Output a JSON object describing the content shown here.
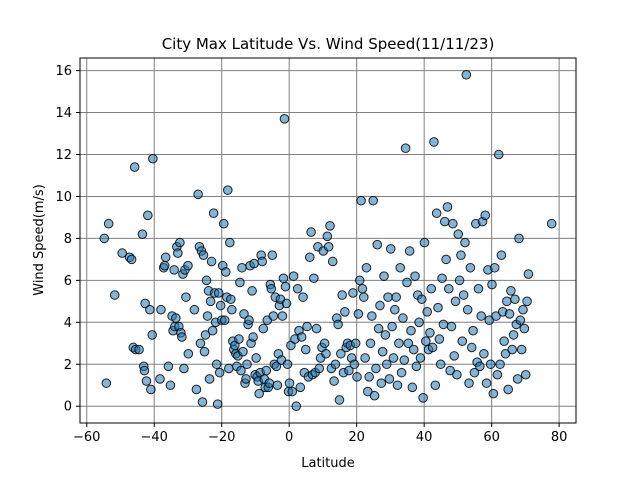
{
  "chart_data": {
    "type": "scatter",
    "title": "City Max Latitude Vs. Wind Speed(11/11/23)",
    "xlabel": "Latitude",
    "ylabel": "Wind Speed(m/s)",
    "xlim": [
      -62,
      85
    ],
    "ylim": [
      -0.8,
      16.6
    ],
    "xticks": [
      -60,
      -40,
      -20,
      0,
      20,
      40,
      60,
      80
    ],
    "yticks": [
      0,
      2,
      4,
      6,
      8,
      10,
      12,
      14,
      16
    ],
    "grid": true,
    "marker_color": "#1f77b4",
    "marker_edge_color": "#000000",
    "marker_alpha": 0.55,
    "points": [
      [
        -54.8,
        8.0
      ],
      [
        -54.2,
        1.1
      ],
      [
        -53.5,
        8.7
      ],
      [
        -51.7,
        5.3
      ],
      [
        -49.5,
        7.3
      ],
      [
        -47.3,
        7.1
      ],
      [
        -46.7,
        7.0
      ],
      [
        -46.2,
        2.8
      ],
      [
        -45.8,
        11.4
      ],
      [
        -45.5,
        2.7
      ],
      [
        -44.5,
        2.7
      ],
      [
        -43.5,
        8.2
      ],
      [
        -43.1,
        1.9
      ],
      [
        -42.9,
        1.7
      ],
      [
        -42.7,
        4.9
      ],
      [
        -42.3,
        1.2
      ],
      [
        -41.9,
        9.1
      ],
      [
        -41.3,
        4.6
      ],
      [
        -41.0,
        0.8
      ],
      [
        -40.6,
        3.4
      ],
      [
        -40.4,
        11.8
      ],
      [
        -38.3,
        1.3
      ],
      [
        -38.0,
        4.6
      ],
      [
        -37.2,
        6.6
      ],
      [
        -36.9,
        6.7
      ],
      [
        -36.6,
        7.1
      ],
      [
        -35.8,
        1.9
      ],
      [
        -35.2,
        1.0
      ],
      [
        -34.7,
        4.3
      ],
      [
        -34.4,
        3.6
      ],
      [
        -34.1,
        6.5
      ],
      [
        -33.9,
        3.8
      ],
      [
        -33.6,
        4.2
      ],
      [
        -33.3,
        7.6
      ],
      [
        -33.0,
        7.3
      ],
      [
        -32.7,
        3.8
      ],
      [
        -32.4,
        7.8
      ],
      [
        -32.1,
        3.5
      ],
      [
        -31.8,
        3.3
      ],
      [
        -31.5,
        6.3
      ],
      [
        -31.2,
        1.8
      ],
      [
        -30.9,
        6.5
      ],
      [
        -30.6,
        5.2
      ],
      [
        -30.0,
        6.7
      ],
      [
        -29.9,
        2.5
      ],
      [
        -28.1,
        4.6
      ],
      [
        -27.5,
        0.8
      ],
      [
        -27.0,
        10.1
      ],
      [
        -26.6,
        7.6
      ],
      [
        -26.3,
        3.0
      ],
      [
        -26.0,
        7.4
      ],
      [
        -25.7,
        0.2
      ],
      [
        -25.4,
        7.2
      ],
      [
        -25.1,
        2.6
      ],
      [
        -24.8,
        3.4
      ],
      [
        -24.5,
        6.0
      ],
      [
        -24.2,
        4.3
      ],
      [
        -23.9,
        5.5
      ],
      [
        -23.6,
        1.3
      ],
      [
        -23.3,
        5.0
      ],
      [
        -23.0,
        6.9
      ],
      [
        -22.7,
        3.6
      ],
      [
        -22.4,
        9.2
      ],
      [
        -22.1,
        5.4
      ],
      [
        -21.8,
        4.0
      ],
      [
        -21.5,
        2.0
      ],
      [
        -21.2,
        0.1
      ],
      [
        -20.9,
        5.4
      ],
      [
        -20.6,
        1.6
      ],
      [
        -20.3,
        4.8
      ],
      [
        -20.0,
        4.1
      ],
      [
        -19.7,
        6.7
      ],
      [
        -19.4,
        8.7
      ],
      [
        -19.1,
        4.1
      ],
      [
        -18.8,
        6.4
      ],
      [
        -18.5,
        5.2
      ],
      [
        -18.2,
        10.3
      ],
      [
        -17.9,
        1.8
      ],
      [
        -17.6,
        7.8
      ],
      [
        -17.3,
        5.1
      ],
      [
        -17.0,
        4.6
      ],
      [
        -16.7,
        3.1
      ],
      [
        -16.4,
        2.7
      ],
      [
        -16.1,
        2.9
      ],
      [
        -15.8,
        2.5
      ],
      [
        -15.5,
        1.9
      ],
      [
        -15.2,
        2.4
      ],
      [
        -14.9,
        3.2
      ],
      [
        -14.6,
        5.9
      ],
      [
        -14.3,
        1.7
      ],
      [
        -14.0,
        6.6
      ],
      [
        -13.7,
        2.6
      ],
      [
        -13.4,
        4.4
      ],
      [
        -13.1,
        1.1
      ],
      [
        -12.8,
        1.3
      ],
      [
        -12.5,
        2.0
      ],
      [
        -12.2,
        3.9
      ],
      [
        -11.9,
        4.1
      ],
      [
        -11.6,
        6.7
      ],
      [
        -11.3,
        3.0
      ],
      [
        -11.0,
        5.5
      ],
      [
        -10.7,
        3.3
      ],
      [
        -10.4,
        6.8
      ],
      [
        -10.1,
        1.5
      ],
      [
        -9.8,
        2.3
      ],
      [
        -9.5,
        1.4
      ],
      [
        -9.2,
        1.2
      ],
      [
        -8.9,
        0.6
      ],
      [
        -8.6,
        1.6
      ],
      [
        -8.3,
        7.2
      ],
      [
        -8.0,
        6.9
      ],
      [
        -7.7,
        3.7
      ],
      [
        -7.4,
        1.3
      ],
      [
        -7.1,
        0.9
      ],
      [
        -6.8,
        1.7
      ],
      [
        -6.5,
        4.1
      ],
      [
        -6.2,
        0.9
      ],
      [
        -5.9,
        1.1
      ],
      [
        -5.6,
        5.8
      ],
      [
        -5.3,
        5.6
      ],
      [
        -5.0,
        7.2
      ],
      [
        -4.7,
        4.3
      ],
      [
        -4.4,
        2.0
      ],
      [
        -4.1,
        5.2
      ],
      [
        -3.8,
        1.9
      ],
      [
        -3.5,
        1.0
      ],
      [
        -3.2,
        2.5
      ],
      [
        -2.9,
        4.8
      ],
      [
        -2.6,
        5.1
      ],
      [
        -2.3,
        2.2
      ],
      [
        -2.0,
        4.3
      ],
      [
        -1.7,
        6.1
      ],
      [
        -1.4,
        13.7
      ],
      [
        -1.1,
        5.7
      ],
      [
        -0.8,
        4.9
      ],
      [
        -0.5,
        2.0
      ],
      [
        -0.2,
        0.7
      ],
      [
        0.1,
        1.1
      ],
      [
        0.5,
        2.9
      ],
      [
        0.9,
        0.7
      ],
      [
        1.3,
        6.2
      ],
      [
        1.7,
        3.2
      ],
      [
        2.1,
        0.0
      ],
      [
        2.5,
        5.6
      ],
      [
        2.9,
        3.6
      ],
      [
        3.3,
        0.9
      ],
      [
        3.7,
        3.3
      ],
      [
        4.1,
        5.2
      ],
      [
        4.5,
        1.6
      ],
      [
        4.9,
        2.7
      ],
      [
        5.3,
        3.8
      ],
      [
        5.7,
        1.4
      ],
      [
        6.1,
        7.1
      ],
      [
        6.5,
        8.3
      ],
      [
        6.9,
        1.5
      ],
      [
        7.3,
        6.1
      ],
      [
        7.7,
        1.6
      ],
      [
        8.1,
        3.7
      ],
      [
        8.5,
        7.6
      ],
      [
        8.9,
        1.8
      ],
      [
        9.3,
        2.3
      ],
      [
        9.7,
        2.8
      ],
      [
        10.1,
        7.4
      ],
      [
        10.5,
        3.0
      ],
      [
        10.9,
        2.5
      ],
      [
        11.3,
        8.1
      ],
      [
        11.7,
        7.6
      ],
      [
        12.1,
        8.6
      ],
      [
        12.5,
        1.8
      ],
      [
        12.9,
        6.9
      ],
      [
        13.3,
        1.2
      ],
      [
        13.7,
        2.0
      ],
      [
        14.1,
        4.2
      ],
      [
        14.5,
        3.9
      ],
      [
        14.9,
        0.3
      ],
      [
        15.3,
        2.5
      ],
      [
        15.7,
        5.3
      ],
      [
        16.1,
        1.6
      ],
      [
        16.5,
        4.5
      ],
      [
        16.9,
        2.8
      ],
      [
        17.3,
        3.0
      ],
      [
        17.7,
        1.7
      ],
      [
        18.1,
        2.9
      ],
      [
        18.5,
        2.3
      ],
      [
        18.9,
        5.4
      ],
      [
        19.3,
        2.0
      ],
      [
        19.7,
        3.0
      ],
      [
        20.1,
        1.4
      ],
      [
        20.5,
        4.4
      ],
      [
        20.9,
        6.0
      ],
      [
        21.3,
        9.8
      ],
      [
        21.7,
        5.6
      ],
      [
        22.1,
        5.2
      ],
      [
        22.5,
        2.3
      ],
      [
        22.9,
        6.6
      ],
      [
        23.3,
        0.7
      ],
      [
        23.7,
        1.4
      ],
      [
        24.1,
        3.0
      ],
      [
        24.5,
        4.3
      ],
      [
        24.9,
        9.8
      ],
      [
        25.3,
        0.5
      ],
      [
        25.7,
        1.8
      ],
      [
        26.1,
        7.7
      ],
      [
        26.5,
        3.7
      ],
      [
        26.9,
        4.8
      ],
      [
        27.3,
        1.1
      ],
      [
        27.7,
        2.6
      ],
      [
        28.1,
        6.2
      ],
      [
        28.5,
        3.4
      ],
      [
        28.9,
        2.0
      ],
      [
        29.3,
        5.2
      ],
      [
        29.7,
        1.3
      ],
      [
        30.1,
        7.5
      ],
      [
        30.5,
        3.8
      ],
      [
        30.9,
        2.3
      ],
      [
        31.3,
        4.6
      ],
      [
        31.7,
        5.2
      ],
      [
        32.1,
        1.0
      ],
      [
        32.5,
        3.0
      ],
      [
        32.9,
        6.6
      ],
      [
        33.3,
        1.6
      ],
      [
        33.7,
        4.2
      ],
      [
        34.1,
        2.2
      ],
      [
        34.5,
        12.3
      ],
      [
        34.9,
        5.9
      ],
      [
        35.3,
        3.0
      ],
      [
        35.7,
        7.4
      ],
      [
        36.1,
        3.6
      ],
      [
        36.5,
        0.9
      ],
      [
        36.9,
        2.7
      ],
      [
        37.3,
        6.2
      ],
      [
        37.7,
        1.9
      ],
      [
        38.1,
        5.3
      ],
      [
        38.5,
        4.0
      ],
      [
        38.9,
        2.3
      ],
      [
        39.3,
        5.1
      ],
      [
        39.7,
        0.4
      ],
      [
        40.1,
        7.8
      ],
      [
        40.5,
        3.1
      ],
      [
        40.9,
        4.5
      ],
      [
        41.3,
        2.7
      ],
      [
        41.7,
        3.5
      ],
      [
        42.1,
        5.6
      ],
      [
        42.5,
        2.8
      ],
      [
        42.9,
        12.6
      ],
      [
        43.3,
        1.0
      ],
      [
        43.7,
        9.2
      ],
      [
        44.1,
        4.7
      ],
      [
        44.5,
        3.2
      ],
      [
        44.9,
        2.0
      ],
      [
        45.3,
        6.1
      ],
      [
        45.7,
        3.9
      ],
      [
        46.1,
        8.8
      ],
      [
        46.5,
        7.0
      ],
      [
        46.9,
        9.5
      ],
      [
        47.3,
        5.6
      ],
      [
        47.7,
        1.7
      ],
      [
        48.1,
        3.8
      ],
      [
        48.5,
        8.7
      ],
      [
        48.9,
        2.4
      ],
      [
        49.3,
        5.0
      ],
      [
        49.7,
        1.5
      ],
      [
        50.1,
        8.2
      ],
      [
        50.5,
        6.0
      ],
      [
        50.9,
        7.2
      ],
      [
        51.3,
        3.1
      ],
      [
        51.7,
        5.3
      ],
      [
        52.1,
        7.8
      ],
      [
        52.5,
        15.8
      ],
      [
        52.9,
        4.6
      ],
      [
        53.3,
        1.1
      ],
      [
        53.7,
        6.6
      ],
      [
        54.1,
        2.8
      ],
      [
        54.5,
        3.6
      ],
      [
        54.9,
        1.6
      ],
      [
        55.3,
        8.7
      ],
      [
        55.7,
        2.1
      ],
      [
        56.1,
        5.6
      ],
      [
        56.5,
        1.9
      ],
      [
        56.9,
        4.3
      ],
      [
        57.3,
        8.8
      ],
      [
        57.7,
        2.5
      ],
      [
        58.1,
        9.1
      ],
      [
        58.5,
        1.1
      ],
      [
        58.9,
        6.5
      ],
      [
        59.3,
        4.1
      ],
      [
        59.7,
        2.0
      ],
      [
        60.1,
        5.8
      ],
      [
        60.5,
        0.6
      ],
      [
        60.9,
        6.6
      ],
      [
        61.3,
        4.3
      ],
      [
        61.7,
        1.5
      ],
      [
        62.1,
        12.0
      ],
      [
        62.5,
        2.0
      ],
      [
        62.9,
        7.2
      ],
      [
        63.3,
        4.5
      ],
      [
        63.7,
        3.1
      ],
      [
        64.1,
        2.5
      ],
      [
        64.5,
        5.0
      ],
      [
        64.9,
        0.8
      ],
      [
        65.3,
        4.4
      ],
      [
        65.7,
        5.5
      ],
      [
        66.1,
        2.7
      ],
      [
        66.5,
        3.4
      ],
      [
        66.9,
        5.1
      ],
      [
        67.3,
        3.9
      ],
      [
        67.7,
        1.3
      ],
      [
        68.1,
        8.0
      ],
      [
        68.5,
        4.1
      ],
      [
        68.9,
        2.7
      ],
      [
        69.3,
        4.6
      ],
      [
        69.7,
        3.7
      ],
      [
        70.1,
        1.5
      ],
      [
        70.5,
        5.0
      ],
      [
        70.9,
        6.3
      ],
      [
        77.8,
        8.7
      ]
    ]
  }
}
